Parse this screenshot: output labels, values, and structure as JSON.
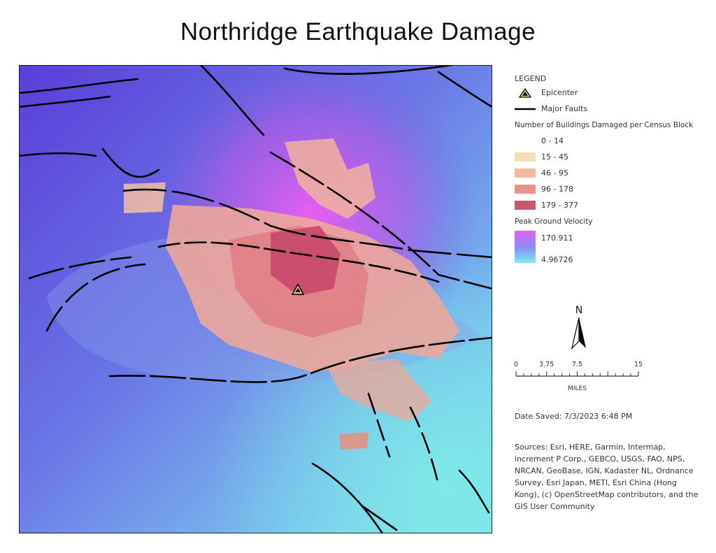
{
  "title": "Northridge Earthquake Damage",
  "legend": {
    "heading": "LEGEND",
    "epicenter": "Epicenter",
    "faults": "Major Faults",
    "damage": {
      "title": "Number of Buildings Damaged per Census Block",
      "classes": [
        "0 - 14",
        "15 - 45",
        "46 - 95",
        "96 - 178",
        "179 - 377"
      ]
    },
    "velocity": {
      "title": "Peak Ground Velocity",
      "high": "170.911",
      "low": "4.96726"
    }
  },
  "north_arrow": "N",
  "scale_bar": {
    "labels": [
      "0",
      "3.75",
      "7.5",
      "15"
    ],
    "unit": "MILES"
  },
  "date_saved": "Date Saved: 7/3/2023 6:48 PM",
  "sources": "Sources: Esri, HERE, Garmin, Intermap, increment P Corp., GEBCO, USGS, FAO, NPS, NRCAN, GeoBase, IGN, Kadaster NL, Ordnance Survey, Esri Japan, METI, Esri China (Hong Kong), (c) OpenStreetMap contributors, and the GIS User Community"
}
